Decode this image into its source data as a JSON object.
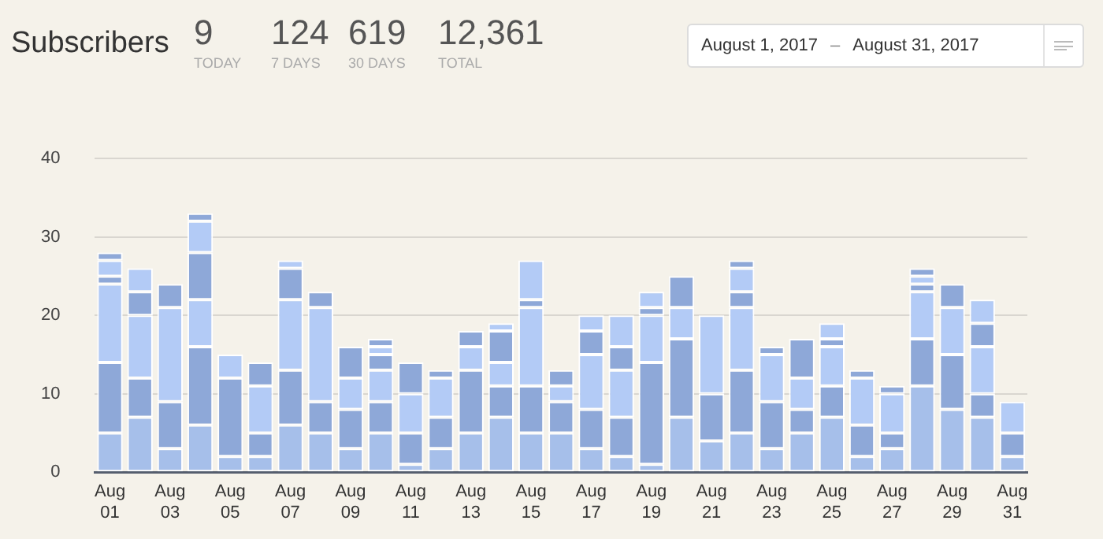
{
  "chart_data": {
    "type": "bar",
    "title": "Subscribers",
    "stacked": true,
    "legend": false,
    "grid": "y",
    "ylim": [
      0,
      40
    ],
    "yticks": [
      0,
      10,
      20,
      30,
      40
    ],
    "annotations": [
      "9",
      "TODAY",
      "124",
      "7 DAYS",
      "619",
      "30 DAYS",
      "12,361",
      "TOTAL",
      "August 1, 2017",
      "–",
      "August 31, 2017"
    ],
    "categories": [
      "Aug 01",
      null,
      "Aug 03",
      null,
      "Aug 05",
      null,
      "Aug 07",
      null,
      "Aug 09",
      null,
      "Aug 11",
      null,
      "Aug 13",
      null,
      "Aug 15",
      null,
      "Aug 17",
      null,
      "Aug 19",
      null,
      "Aug 21",
      null,
      "Aug 23",
      null,
      "Aug 25",
      null,
      "Aug 27",
      null,
      "Aug 29",
      null,
      "Aug 31"
    ],
    "series": [
      {
        "color": "#a6bfea",
        "values": [
          5,
          7,
          3,
          6,
          2,
          2,
          6,
          5,
          3,
          5,
          1,
          3,
          5,
          7,
          5,
          5,
          3,
          2,
          1,
          7,
          4,
          5,
          3,
          5,
          7,
          2,
          3,
          11,
          8,
          7,
          2
        ]
      },
      {
        "color": "#8ea8d8",
        "values": [
          9,
          5,
          6,
          10,
          10,
          3,
          7,
          4,
          5,
          4,
          4,
          4,
          8,
          4,
          6,
          4,
          5,
          5,
          13,
          10,
          6,
          8,
          6,
          3,
          4,
          4,
          2,
          6,
          7,
          3,
          3
        ]
      },
      {
        "color": "#b3cbf6",
        "values": [
          10,
          8,
          12,
          6,
          3,
          6,
          9,
          12,
          4,
          4,
          5,
          5,
          3,
          3,
          10,
          2,
          7,
          6,
          6,
          4,
          10,
          8,
          6,
          4,
          5,
          6,
          5,
          6,
          6,
          6,
          4
        ]
      },
      {
        "color": "#8ea8d8",
        "values": [
          1,
          3,
          3,
          6,
          0,
          3,
          4,
          2,
          4,
          2,
          4,
          1,
          2,
          4,
          1,
          2,
          3,
          3,
          1,
          4,
          0,
          2,
          1,
          5,
          1,
          1,
          1,
          1,
          3,
          3,
          0
        ]
      },
      {
        "color": "#b3cbf6",
        "values": [
          2,
          3,
          0,
          4,
          0,
          0,
          1,
          0,
          0,
          1,
          0,
          0,
          0,
          1,
          5,
          0,
          2,
          4,
          2,
          0,
          0,
          3,
          0,
          0,
          2,
          0,
          0,
          1,
          0,
          3,
          0
        ]
      },
      {
        "color": "#8ea8d8",
        "values": [
          1,
          0,
          0,
          1,
          0,
          0,
          0,
          0,
          0,
          1,
          0,
          0,
          0,
          0,
          0,
          0,
          0,
          0,
          0,
          0,
          0,
          1,
          0,
          0,
          0,
          0,
          0,
          1,
          0,
          0,
          0
        ]
      }
    ]
  }
}
